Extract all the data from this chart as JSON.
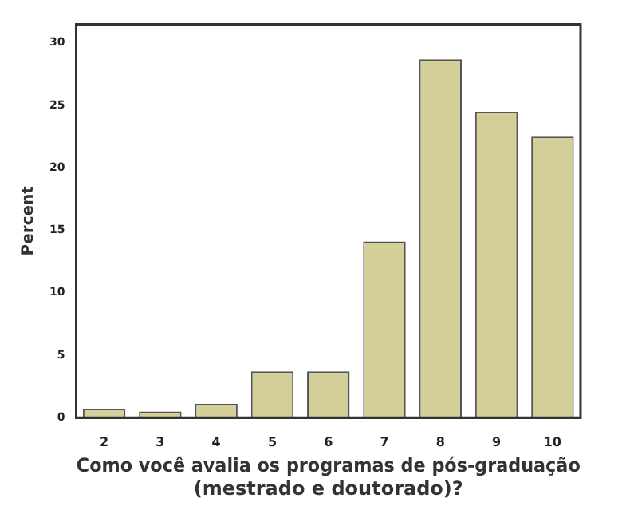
{
  "chart_data": {
    "type": "bar",
    "xlabel": "Como você avalia os programas de pós-graduação (mestrado e doutorado)?",
    "ylabel": "Percent",
    "categories": [
      "2",
      "3",
      "4",
      "5",
      "6",
      "7",
      "8",
      "9",
      "10"
    ],
    "values": [
      0.7,
      0.5,
      1.1,
      3.7,
      3.7,
      14.1,
      28.7,
      24.5,
      22.5
    ],
    "color": "#d4cf99",
    "ylim": [
      0,
      31.5
    ],
    "yticks": [
      0,
      5,
      10,
      15,
      20,
      25,
      30
    ],
    "grid": false,
    "legend": false
  }
}
